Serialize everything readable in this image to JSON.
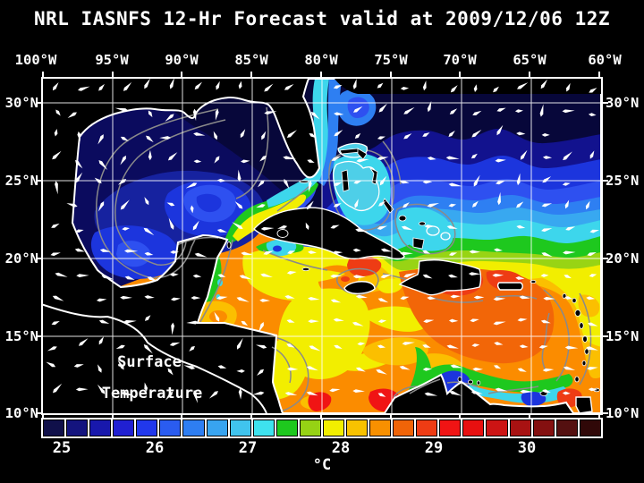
{
  "title": "NRL IASNFS  12-Hr Forecast valid at 2009/12/06 12Z",
  "map": {
    "top_axis_labels": [
      "100°W",
      "95°W",
      "90°W",
      "85°W",
      "80°W",
      "75°W",
      "70°W",
      "65°W",
      "60°W"
    ],
    "left_axis_labels": [
      "30°N",
      "25°N",
      "20°N",
      "15°N",
      "10°N"
    ],
    "right_axis_labels": [
      "30°N",
      "25°N",
      "20°N",
      "15°N",
      "10°N"
    ],
    "annotation_line1": "Surface",
    "annotation_line2": "Temperature",
    "grid_color": "#ffffff",
    "contour_color": "#8a8a8a",
    "vector_color": "#ffffff",
    "land_color": "#000000",
    "coastline_color": "#ffffff"
  },
  "colorbar": {
    "tick_labels": [
      "25",
      "26",
      "27",
      "28",
      "29",
      "30"
    ],
    "unit": "°C",
    "cell_colors": [
      "#10104a",
      "#14147e",
      "#1818ac",
      "#2020d2",
      "#2138ec",
      "#2a5cf0",
      "#2e7ef2",
      "#38a4f0",
      "#40c4ee",
      "#3ee2ee",
      "#1ec81e",
      "#96d214",
      "#f2ee00",
      "#f8c200",
      "#f89000",
      "#f06408",
      "#ee3c14",
      "#f01414",
      "#e81010",
      "#cc1414",
      "#a81212",
      "#841010",
      "#541010",
      "#300808"
    ]
  },
  "palette": {
    "navy_dark": "#07073a",
    "navy": "#0b0b5e",
    "navy_med": "#12128e",
    "blue_deep": "#16229f",
    "blue": "#1c35dd",
    "blue_bright": "#2e50f0",
    "blue_light": "#2e7ff2",
    "sky": "#38a8f0",
    "cyan": "#3dd6ec",
    "bank": "#4ecfe8",
    "green": "#1ec81e",
    "yellow_green": "#98d414",
    "yellow": "#f2ee00",
    "amber": "#fbbf00",
    "orange": "#fb8c00",
    "orange_deep": "#f26608",
    "red_orange": "#ee3c14",
    "red": "#f01414"
  }
}
